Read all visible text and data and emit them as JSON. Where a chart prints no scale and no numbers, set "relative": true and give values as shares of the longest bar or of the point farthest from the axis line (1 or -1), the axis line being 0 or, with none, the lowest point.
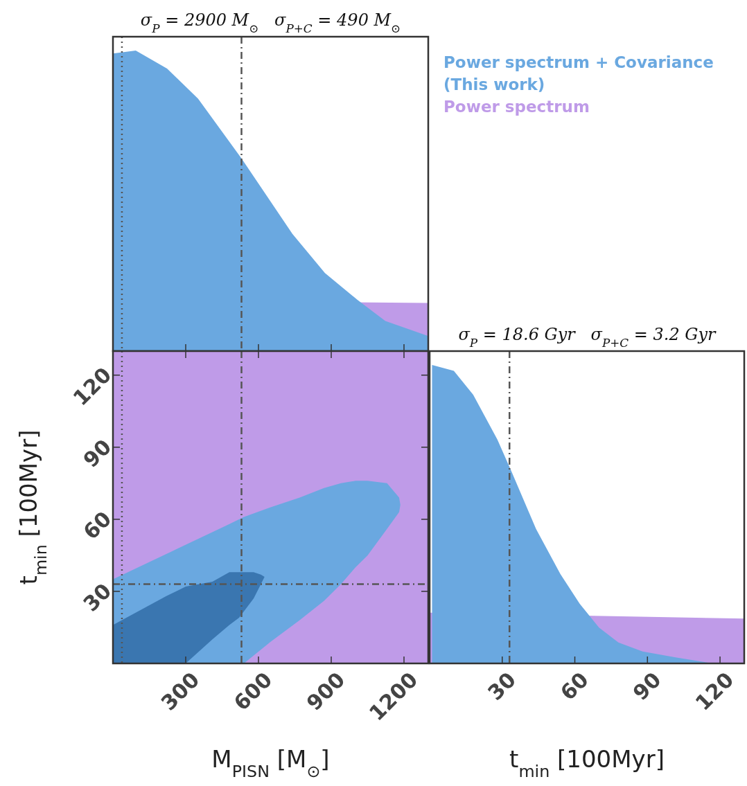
{
  "chart_data": [
    {
      "type": "area",
      "title": "σ$_{P}$ = 2900 M$_{⊙}$   σ$_{P+C}$ = 490 M$_{⊙}$",
      "relative": true,
      "xlim": [
        0,
        1300
      ],
      "xticks": [
        300,
        600,
        900,
        1200
      ],
      "tick_labels": false,
      "legend": "right",
      "ref_lines": [
        {
          "axis": "x",
          "value": 37,
          "line_style": "dotted",
          "color": "#555555"
        },
        {
          "axis": "x",
          "value": 530,
          "line_style": "dashdot",
          "color": "#555555"
        }
      ],
      "series": [
        {
          "name": "Power spectrum",
          "color": "#bf9be8",
          "x": [
            0,
            1300
          ],
          "values": [
            0.17,
            0.16
          ]
        },
        {
          "name": "Power spectrum + Covariance (This work)",
          "color": "#6aa8e0",
          "x": [
            0,
            94,
            223,
            351,
            531,
            740,
            874,
            1009,
            1123,
            1300
          ],
          "values": [
            0.99,
            1,
            0.94,
            0.84,
            0.64,
            0.39,
            0.26,
            0.17,
            0.1,
            0.05
          ]
        }
      ]
    },
    {
      "type": "area",
      "xlabel": "M$_{PISN}$ [M$_{⊙}$]",
      "ylabel": "t$_{min}$ [100Myr]",
      "xlim": [
        0,
        1300
      ],
      "xticks": [
        300,
        600,
        900,
        1200
      ],
      "ylim": [
        0,
        130
      ],
      "yticks": [
        30,
        60,
        90,
        120
      ],
      "ref_lines": [
        {
          "axis": "x",
          "value": 37,
          "line_style": "dotted",
          "color": "#555555"
        },
        {
          "axis": "x",
          "value": 530,
          "line_style": "dashdot",
          "color": "#555555"
        },
        {
          "axis": "y",
          "value": 33,
          "line_style": "dashdot",
          "color": "#555555"
        }
      ],
      "bands": [
        {
          "axis": "y",
          "from": 0,
          "to": 130,
          "color": "#bf9be8"
        }
      ],
      "series": [
        {
          "color": "#6aa8e0",
          "x": [
            0,
            250,
            480,
            540,
            650,
            770,
            870,
            940,
            1000,
            1050,
            1130,
            1180,
            1185,
            1180,
            1130,
            1050,
            1000,
            940,
            870,
            770,
            650,
            540,
            0
          ],
          "values": [
            35,
            47,
            58,
            61,
            65,
            69,
            73,
            75,
            76,
            76,
            75,
            69,
            66,
            63,
            56,
            45,
            40,
            33,
            26,
            18,
            9,
            0,
            0
          ]
        },
        {
          "color": "#3a76b0",
          "x": [
            0,
            220,
            300,
            410,
            480,
            520,
            580,
            610,
            625,
            610,
            580,
            520,
            480,
            410,
            300,
            0
          ],
          "values": [
            16,
            28,
            32,
            34,
            38,
            38,
            38,
            37,
            36,
            33,
            27,
            19,
            16,
            10,
            0,
            0
          ]
        }
      ]
    },
    {
      "type": "area",
      "title": "σ$_{P}$ = 18.6 Gyr   σ$_{P+C}$ = 3.2 Gyr",
      "xlabel": "t$_{min}$ [100Myr]",
      "relative": true,
      "xlim": [
        0,
        130
      ],
      "xticks": [
        30,
        60,
        90,
        120
      ],
      "tick_labels": "x",
      "ref_lines": [
        {
          "axis": "x",
          "value": 33,
          "line_style": "dashdot",
          "color": "#555555"
        }
      ],
      "series": [
        {
          "color": "#bf9be8",
          "x": [
            0,
            60,
            130
          ],
          "values": [
            0.17,
            null,
            0.15
          ]
        },
        {
          "color": "#6aa8e0",
          "x": [
            1,
            10,
            18,
            28,
            34,
            44,
            54,
            62,
            70,
            78,
            88,
            102,
            117,
            130
          ],
          "values": [
            1,
            0.98,
            0.9,
            0.75,
            0.64,
            0.45,
            0.3,
            0.2,
            0.12,
            0.07,
            0.04,
            0.02,
            0,
            0
          ]
        }
      ]
    }
  ]
}
